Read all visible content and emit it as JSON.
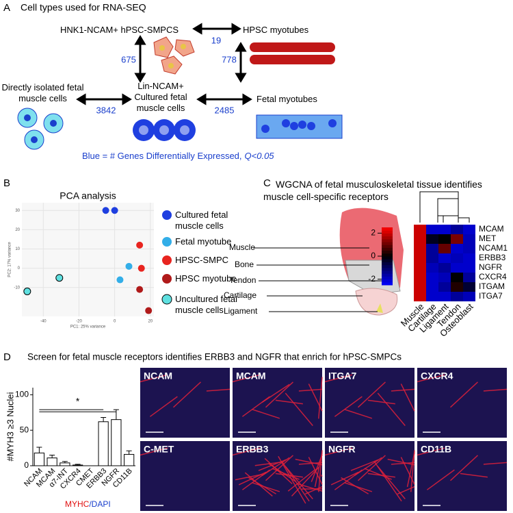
{
  "panel_a": {
    "letter": "A",
    "title": "Cell types used for RNA-SEQ",
    "nodes": [
      "HNK1-NCAM+ hPSC-SMPCS",
      "HPSC myotubes",
      "Directly isolated fetal muscle cells",
      "Lin-NCAM+ Cultured fetal muscle cells",
      "Fetal myotubes"
    ],
    "de_counts": [
      19,
      675,
      778,
      3842,
      2485
    ],
    "footnote": "Blue = # Genes Differentially Expressed,",
    "footnote_q": "Q<0.05"
  },
  "panel_b": {
    "letter": "B"
  },
  "panel_c": {
    "letter": "C",
    "title": "WGCNA of fetal musculoskeletal tissue identifies muscle cell-specific receptors",
    "tissues": [
      "Muscle",
      "Bone",
      "Tendon",
      "Cartilage",
      "Ligament"
    ]
  },
  "panel_d": {
    "letter": "D",
    "title": "Screen for fetal muscle receptors identifies ERBB3 and NGFR that enrich for hPSC-SMPCs",
    "images": [
      "NCAM",
      "MCAM",
      "ITGA7",
      "CXCR4",
      "C-MET",
      "ERBB3",
      "NGFR",
      "CD11B"
    ],
    "stain_red": "MYHC",
    "stain_blue": "/DAPI"
  },
  "chart_data": [
    {
      "type": "scatter",
      "title": "PCA analysis",
      "x_label": "PC1: 25% variance",
      "y_label": "PC2: 17% variance",
      "xlim": [
        -52,
        22
      ],
      "ylim": [
        -25,
        34
      ],
      "xticks": [
        -40,
        -20,
        0,
        20
      ],
      "yticks": [
        -10,
        0,
        10,
        20,
        30
      ],
      "grid": true,
      "series": [
        {
          "name": "Cultured fetal muscle cells",
          "color": "#1f3fe0",
          "x": [
            -5,
            0
          ],
          "values": [
            30,
            30
          ]
        },
        {
          "name": "Fetal myotube",
          "color": "#33aee8",
          "x": [
            3,
            8
          ],
          "values": [
            -6,
            1
          ]
        },
        {
          "name": "HPSC-SMPC",
          "color": "#e8241f",
          "x": [
            14,
            15
          ],
          "values": [
            12,
            0
          ]
        },
        {
          "name": "HPSC myotube",
          "color": "#b01a1a",
          "x": [
            14,
            19
          ],
          "values": [
            -11,
            -22
          ]
        },
        {
          "name": "Uncultured fetal muscle cells",
          "color": "#5fe0e0",
          "edgecolor": "#000000",
          "x": [
            -31,
            -49
          ],
          "values": [
            -5,
            -12
          ]
        }
      ]
    },
    {
      "type": "bar",
      "y_label": "#MYH3 ≥3 Nuclei",
      "annotation": "*",
      "categories": [
        "NCAM",
        "MCAM",
        "α7-INT",
        "CXCR4",
        "CMET",
        "ERBB3",
        "NGFR",
        "CD11B"
      ],
      "values": [
        18,
        11,
        4,
        1,
        0,
        62,
        65,
        16
      ],
      "errors": [
        8,
        4,
        2,
        1,
        0,
        6,
        14,
        5
      ],
      "color": "#ffffff",
      "ylim": [
        0,
        110
      ],
      "yticks": [
        0,
        50,
        100
      ]
    },
    {
      "type": "heatmap",
      "rows": [
        "MCAM",
        "MET",
        "NCAM1",
        "ERBB3",
        "NGFR",
        "CXCR4",
        "ITGAM",
        "ITGA7"
      ],
      "columns": [
        "Muscle",
        "Cartilage",
        "Ligament",
        "Tendon",
        "Osteoblast"
      ],
      "values": [
        [
          2,
          -2,
          -2,
          -1.5,
          -2
        ],
        [
          2,
          -0.3,
          0,
          1.2,
          -1.8
        ],
        [
          2,
          -1.5,
          1,
          -2,
          -1.8
        ],
        [
          2,
          -1.5,
          -2,
          -1.8,
          -2
        ],
        [
          2,
          -1.8,
          -1.5,
          -2,
          -2
        ],
        [
          2,
          -2,
          -1.8,
          0,
          -1.5
        ],
        [
          2,
          -2,
          -1.5,
          0.3,
          -0.5
        ],
        [
          2,
          -2,
          -2,
          -1.5,
          -1.8
        ]
      ],
      "clim": [
        -2.5,
        2.5
      ],
      "cticks": [
        2,
        0,
        -2
      ]
    }
  ]
}
